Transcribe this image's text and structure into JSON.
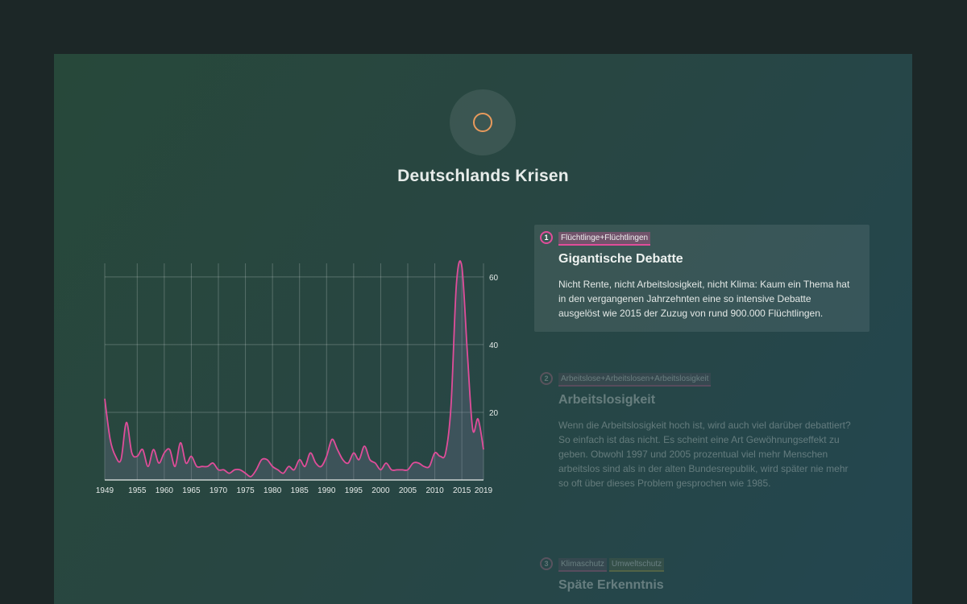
{
  "page": {
    "title": "Deutschlands Krisen"
  },
  "cards": [
    {
      "number": "1",
      "tags": [
        {
          "label": "Flüchtlinge+Flüchtlingen",
          "color": "#e04d9a"
        }
      ],
      "title": "Gigantische Debatte",
      "text": "Nicht Rente, nicht Arbeitslosigkeit, nicht Klima: Kaum ein Thema hat in den vergangenen Jahrzehnten eine so intensive Debatte ausgelöst wie 2015 der Zuzug von rund 900.000 Flüchtlingen."
    },
    {
      "number": "2",
      "tags": [
        {
          "label": "Arbeitslose+Arbeitslosen+Arbeitslosigkeit",
          "color": "#c05a8a"
        }
      ],
      "title": "Arbeitslosigkeit",
      "text": "Wenn die Arbeitslosigkeit hoch ist, wird auch viel darüber debattiert? So einfach ist das nicht. Es scheint eine Art Gewöhnungseffekt zu geben. Obwohl 1997 und 2005 prozentual viel mehr Menschen arbeitslos sind als in der alten Bundesrepublik, wird später nie mehr so oft über dieses Problem gesprochen wie 1985."
    },
    {
      "number": "3",
      "tags": [
        {
          "label": "Klimaschutz",
          "color": "#c05a8a"
        },
        {
          "label": "Umweltschutz",
          "color": "#b0a040"
        }
      ],
      "title": "Späte Erkenntnis",
      "text": ""
    }
  ],
  "chart_data": {
    "type": "area",
    "title": "",
    "xlabel": "",
    "ylabel": "",
    "xlim": [
      1949,
      2019
    ],
    "ylim": [
      0,
      64
    ],
    "x_ticks": [
      1949,
      1955,
      1960,
      1965,
      1970,
      1975,
      1980,
      1985,
      1990,
      1995,
      2000,
      2005,
      2010,
      2015,
      2019
    ],
    "y_ticks": [
      20,
      40,
      60
    ],
    "grid": true,
    "y_axis_position": "right",
    "line_color": "#e04d9a",
    "series": [
      {
        "x": [
          1949,
          1950,
          1951,
          1952,
          1953,
          1954,
          1955,
          1956,
          1957,
          1958,
          1959,
          1960,
          1961,
          1962,
          1963,
          1964,
          1965,
          1966,
          1967,
          1968,
          1969,
          1970,
          1971,
          1972,
          1973,
          1974,
          1975,
          1976,
          1977,
          1978,
          1979,
          1980,
          1981,
          1982,
          1983,
          1984,
          1985,
          1986,
          1987,
          1988,
          1989,
          1990,
          1991,
          1992,
          1993,
          1994,
          1995,
          1996,
          1997,
          1998,
          1999,
          2000,
          2001,
          2002,
          2003,
          2004,
          2005,
          2006,
          2007,
          2008,
          2009,
          2010,
          2011,
          2012,
          2013,
          2014,
          2015,
          2016,
          2017,
          2018,
          2019
        ],
        "values": [
          24,
          12,
          7,
          6,
          17,
          8,
          7,
          9,
          4,
          9,
          5,
          8,
          9,
          4,
          11,
          5,
          7,
          4,
          4,
          4,
          5,
          3,
          3,
          2,
          3,
          3,
          2,
          1,
          3,
          6,
          6,
          4,
          3,
          2,
          4,
          3,
          6,
          4,
          8,
          5,
          4,
          7,
          12,
          9,
          6,
          5,
          8,
          6,
          10,
          6,
          5,
          3,
          5,
          3,
          3,
          3,
          3,
          5,
          5,
          4,
          4,
          8,
          7,
          8,
          22,
          58,
          63,
          38,
          15,
          18,
          9
        ]
      }
    ]
  }
}
